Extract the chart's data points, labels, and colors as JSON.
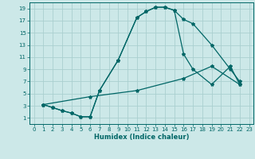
{
  "xlabel": "Humidex (Indice chaleur)",
  "bg_color": "#cce8e8",
  "grid_color": "#aacfcf",
  "line_color": "#006666",
  "xlim": [
    -0.5,
    23.5
  ],
  "ylim": [
    0,
    20
  ],
  "xticks": [
    0,
    1,
    2,
    3,
    4,
    5,
    6,
    7,
    8,
    9,
    10,
    11,
    12,
    13,
    14,
    15,
    16,
    17,
    18,
    19,
    20,
    21,
    22,
    23
  ],
  "yticks": [
    1,
    3,
    5,
    7,
    9,
    11,
    13,
    15,
    17,
    19
  ],
  "curve1_x": [
    1,
    2,
    3,
    4,
    5,
    6,
    7,
    9,
    11,
    12,
    13,
    14,
    15,
    16,
    17,
    19,
    21,
    22
  ],
  "curve1_y": [
    3.2,
    2.7,
    2.2,
    1.8,
    1.2,
    1.2,
    5.5,
    10.5,
    17.5,
    18.5,
    19.2,
    19.2,
    18.7,
    17.2,
    16.5,
    13.0,
    9.0,
    7.0
  ],
  "curve2_x": [
    1,
    2,
    3,
    4,
    5,
    6,
    7,
    9,
    11,
    12,
    13,
    14,
    15,
    16,
    17,
    19,
    21,
    22
  ],
  "curve2_y": [
    3.2,
    2.7,
    2.2,
    1.8,
    1.2,
    1.2,
    5.5,
    10.5,
    17.5,
    18.5,
    19.2,
    19.2,
    18.7,
    11.5,
    9.0,
    6.5,
    9.5,
    6.5
  ],
  "curve3_x": [
    1,
    6,
    11,
    16,
    19,
    22
  ],
  "curve3_y": [
    3.2,
    4.5,
    5.5,
    7.5,
    9.5,
    6.5
  ]
}
